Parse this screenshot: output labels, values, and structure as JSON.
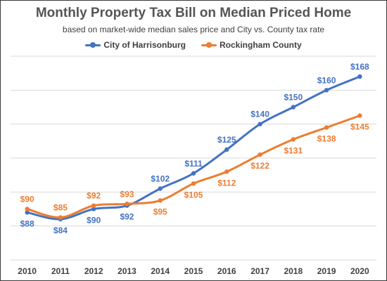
{
  "chart_data": {
    "type": "line",
    "title": "Monthly Property Tax Bill on Median Priced Home",
    "subtitle": "based on market-wide median sales price and City vs. County tax rate",
    "xlabel": "",
    "ylabel": "",
    "categories": [
      "2010",
      "2011",
      "2012",
      "2013",
      "2014",
      "2015",
      "2016",
      "2017",
      "2018",
      "2019",
      "2020"
    ],
    "ylim": [
      60,
      180
    ],
    "grid": true,
    "legend_position": "top",
    "series": [
      {
        "name": "City of Harrisonburg",
        "color": "#4472C4",
        "values": [
          88,
          84,
          90,
          92,
          102,
          111,
          125,
          140,
          150,
          160,
          168
        ],
        "labels": [
          "$88",
          "$84",
          "$90",
          "$92",
          "$102",
          "$111",
          "$125",
          "$140",
          "$150",
          "$160",
          "$168"
        ]
      },
      {
        "name": "Rockingham County",
        "color": "#ED7D31",
        "values": [
          90,
          85,
          92,
          93,
          95,
          105,
          112,
          122,
          131,
          138,
          145
        ],
        "labels": [
          "$90",
          "$85",
          "$92",
          "$93",
          "$95",
          "$105",
          "$112",
          "$122",
          "$131",
          "$138",
          "$145"
        ]
      }
    ]
  }
}
